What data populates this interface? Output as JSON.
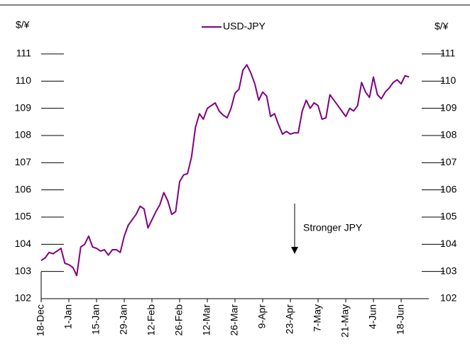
{
  "chart_data": {
    "type": "line",
    "y_label_left": "$/¥",
    "y_label_right": "$/¥",
    "annotation": "Stronger JPY",
    "categories": [
      "18-Dec",
      null,
      null,
      null,
      null,
      null,
      null,
      "1-Jan",
      null,
      null,
      null,
      null,
      null,
      null,
      "15-Jan",
      null,
      null,
      null,
      null,
      null,
      null,
      "29-Jan",
      null,
      null,
      null,
      null,
      null,
      null,
      "12-Feb",
      null,
      null,
      null,
      null,
      null,
      null,
      "26-Feb",
      null,
      null,
      null,
      null,
      null,
      null,
      "12-Mar",
      null,
      null,
      null,
      null,
      null,
      null,
      "26-Mar",
      null,
      null,
      null,
      null,
      null,
      null,
      "9-Apr",
      null,
      null,
      null,
      null,
      null,
      null,
      "23-Apr",
      null,
      null,
      null,
      null,
      null,
      null,
      "7-May",
      null,
      null,
      null,
      null,
      null,
      null,
      "21-May",
      null,
      null,
      null,
      null,
      null,
      null,
      "4-Jun",
      null,
      null,
      null,
      null,
      null,
      null,
      "18-Jun",
      null,
      null
    ],
    "series": [
      {
        "name": "USD-JPY",
        "color": "#800080",
        "values": [
          103.4,
          103.5,
          103.7,
          103.65,
          103.75,
          103.85,
          103.3,
          103.25,
          103.15,
          102.85,
          103.9,
          104.0,
          104.3,
          103.9,
          103.85,
          103.75,
          103.8,
          103.6,
          103.8,
          103.8,
          103.7,
          104.3,
          104.7,
          104.9,
          105.1,
          105.4,
          105.3,
          104.6,
          104.9,
          105.2,
          105.45,
          105.9,
          105.6,
          105.1,
          105.2,
          106.3,
          106.55,
          106.6,
          107.2,
          108.3,
          108.8,
          108.6,
          109.0,
          109.1,
          109.2,
          108.9,
          108.75,
          108.65,
          109.0,
          109.55,
          109.7,
          110.4,
          110.6,
          110.3,
          109.9,
          109.3,
          109.6,
          109.45,
          108.7,
          108.8,
          108.4,
          108.05,
          108.15,
          108.05,
          108.1,
          108.1,
          108.9,
          109.3,
          109.0,
          109.2,
          109.1,
          108.6,
          108.65,
          109.5,
          109.3,
          109.1,
          108.9,
          108.7,
          109.0,
          108.9,
          109.1,
          109.95,
          109.6,
          109.4,
          110.15,
          109.5,
          109.35,
          109.6,
          109.75,
          109.95,
          110.05,
          109.9,
          110.2,
          110.15
        ]
      }
    ],
    "ylim": [
      102,
      111
    ],
    "yticks": [
      102,
      103,
      104,
      105,
      106,
      107,
      108,
      109,
      110,
      111
    ]
  }
}
